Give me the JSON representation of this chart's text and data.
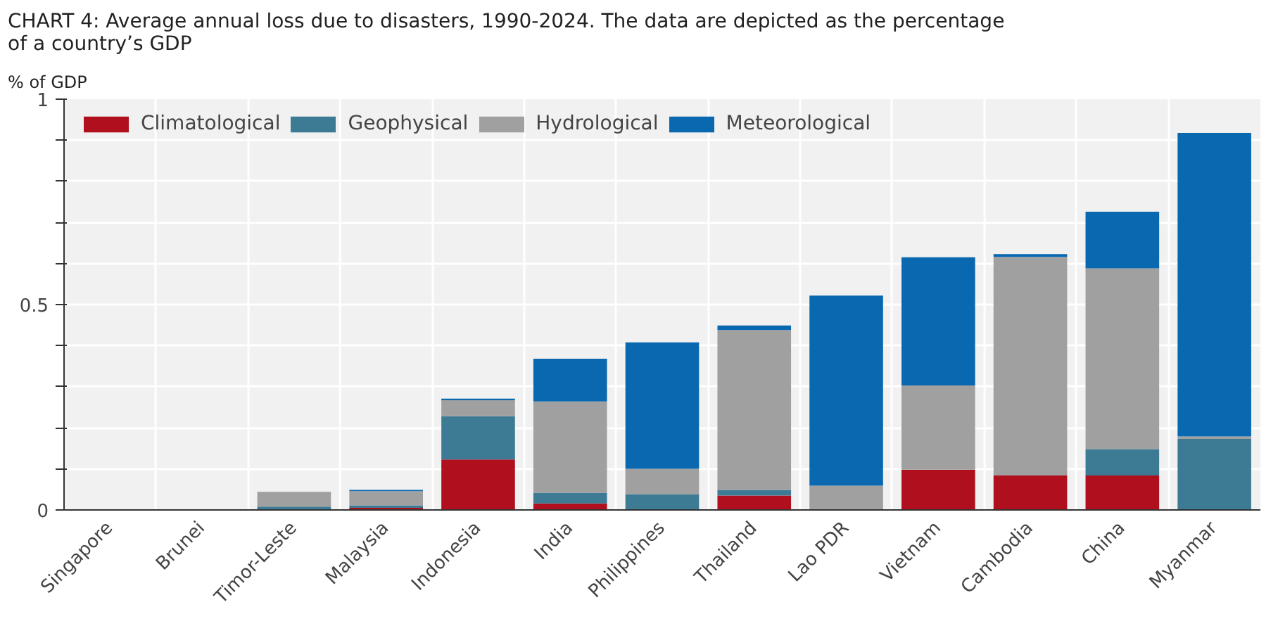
{
  "chart_data": {
    "type": "bar",
    "stacked": true,
    "title": "CHART 4: Average annual loss due to disasters, 1990-2024. The data are depicted as the percentage of a country’s GDP",
    "ylabel": "% of GDP",
    "categories": [
      "Singapore",
      "Brunei",
      "Timor-Leste",
      "Malaysia",
      "Indonesia",
      "India",
      "Philippines",
      "Thailand",
      "Lao PDR",
      "Vietnam",
      "Cambodia",
      "China",
      "Myanmar"
    ],
    "series": [
      {
        "name": "Climatological",
        "color": "#b0101e",
        "values": [
          0,
          0,
          0,
          0.005,
          0.123,
          0.016,
          0,
          0.035,
          0,
          0.098,
          0.084,
          0.084,
          0
        ]
      },
      {
        "name": "Geophysical",
        "color": "#3d7a94",
        "values": [
          0,
          0,
          0.008,
          0.006,
          0.105,
          0.026,
          0.038,
          0.014,
          0,
          0,
          0,
          0.064,
          0.173
        ]
      },
      {
        "name": "Hydrological",
        "color": "#a0a0a0",
        "values": [
          0,
          0,
          0.036,
          0.035,
          0.039,
          0.222,
          0.062,
          0.389,
          0.059,
          0.205,
          0.532,
          0.44,
          0.006
        ]
      },
      {
        "name": "Meteorological",
        "color": "#0a68b0",
        "values": [
          0,
          0,
          0,
          0.003,
          0.004,
          0.104,
          0.308,
          0.011,
          0.463,
          0.312,
          0.007,
          0.138,
          0.739
        ]
      }
    ],
    "ylim": [
      0,
      1
    ],
    "yticks": [
      0,
      {
        "value": 0.1,
        "label": null
      },
      {
        "value": 0.2,
        "label": null
      },
      {
        "value": 0.3,
        "label": null
      },
      {
        "value": 0.4,
        "label": null
      },
      0.5,
      {
        "value": 0.6,
        "label": null
      },
      {
        "value": 0.7,
        "label": null
      },
      {
        "value": 0.8,
        "label": null
      },
      {
        "value": 0.9,
        "label": null
      },
      1
    ],
    "grid": true,
    "legend": "top left"
  }
}
